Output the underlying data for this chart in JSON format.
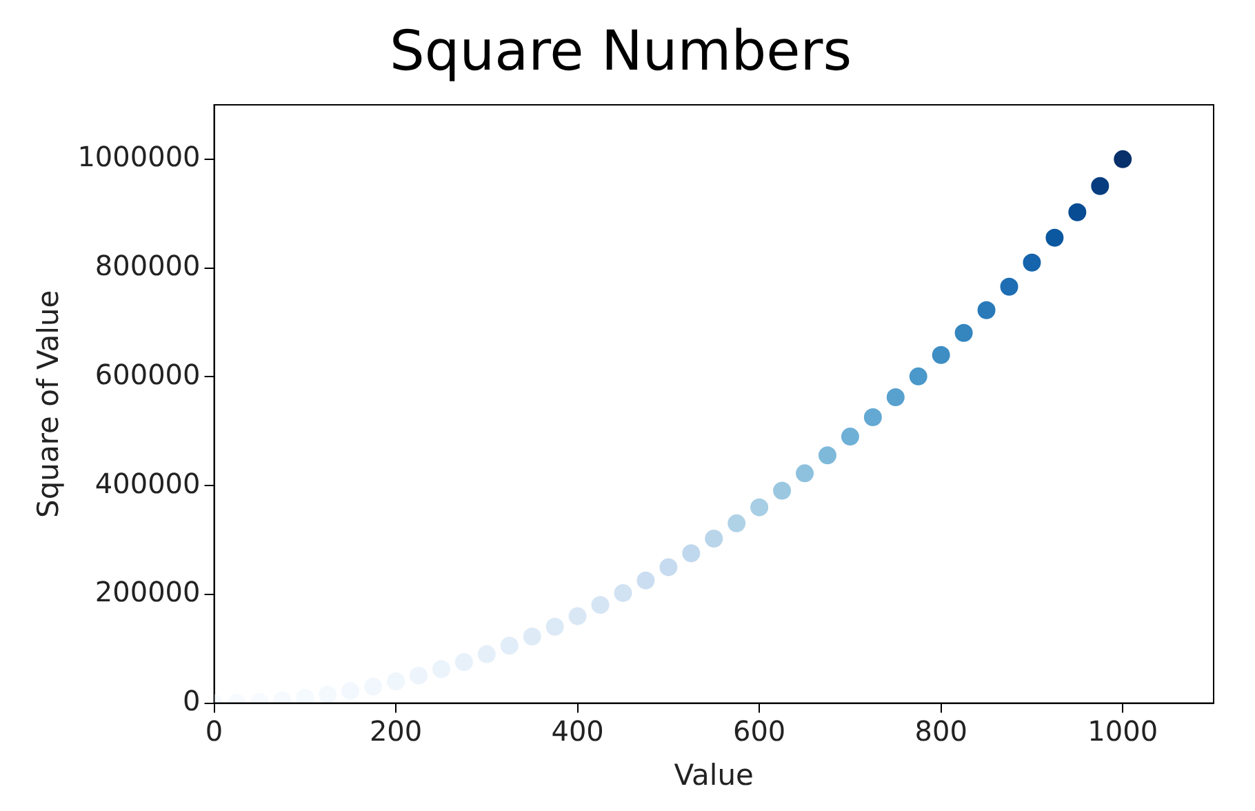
{
  "chart_data": {
    "type": "scatter",
    "title": "Square Numbers",
    "xlabel": "Value",
    "ylabel": "Square of Value",
    "x": [
      0,
      25,
      50,
      75,
      100,
      125,
      150,
      175,
      200,
      225,
      250,
      275,
      300,
      325,
      350,
      375,
      400,
      425,
      450,
      475,
      500,
      525,
      550,
      575,
      600,
      625,
      650,
      675,
      700,
      725,
      750,
      775,
      800,
      825,
      850,
      875,
      900,
      925,
      950,
      975,
      1000
    ],
    "values": [
      0,
      625,
      2500,
      5625,
      10000,
      15625,
      22500,
      30625,
      40000,
      50625,
      62500,
      75625,
      90000,
      105625,
      122500,
      140625,
      160000,
      180625,
      202500,
      225625,
      250000,
      275625,
      302500,
      330625,
      360000,
      390625,
      422500,
      455625,
      490000,
      525625,
      562500,
      600625,
      640000,
      680625,
      722500,
      765625,
      810000,
      855625,
      902500,
      950625,
      1000000
    ],
    "colors": [
      "#f7fbff",
      "#f7fbff",
      "#f7fbff",
      "#f6faff",
      "#f5fafe",
      "#f4f9fe",
      "#f3f8fe",
      "#f1f7fd",
      "#eff6fc",
      "#edf4fc",
      "#ebf3fb",
      "#e8f1fa",
      "#e5eff9",
      "#e1edf8",
      "#deebf7",
      "#dce9f6",
      "#d9e7f5",
      "#d5e5f4",
      "#d1e2f2",
      "#cbdef1",
      "#c6dbef",
      "#c0d8ed",
      "#b9d5ea",
      "#b0d2e7",
      "#a7cee4",
      "#9bc8e0",
      "#8dc1dd",
      "#7fb9da",
      "#6fb0d7",
      "#64a9d3",
      "#58a1cf",
      "#4b98ca",
      "#3e8ec4",
      "#3585bf",
      "#2a7ab9",
      "#1f6eb3",
      "#1664ab",
      "#0c58a0",
      "#084c93",
      "#083e7f",
      "#08306b"
    ],
    "xlim": [
      0,
      1100
    ],
    "xticks": [
      0,
      200,
      400,
      600,
      800,
      1000
    ],
    "ylim": [
      0,
      1100000
    ],
    "yticks": [
      0,
      200000,
      400000,
      600000,
      800000,
      1000000
    ],
    "marker": "circle"
  }
}
